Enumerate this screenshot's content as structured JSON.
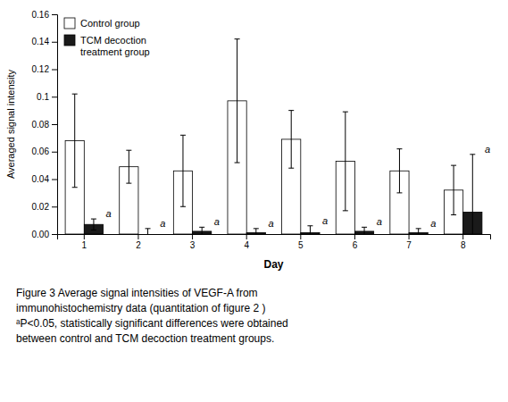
{
  "chart_data": {
    "type": "bar",
    "categories": [
      "1",
      "2",
      "3",
      "4",
      "5",
      "6",
      "7",
      "8"
    ],
    "series": [
      {
        "name": "Control group",
        "color": "#ffffff",
        "values": [
          0.068,
          0.049,
          0.046,
          0.097,
          0.069,
          0.053,
          0.046,
          0.032
        ],
        "errors": [
          0.034,
          0.012,
          0.026,
          0.045,
          0.021,
          0.036,
          0.016,
          0.018
        ]
      },
      {
        "name": "TCM decoction\ntreatment group",
        "color": "#1a1a1a",
        "values": [
          0.007,
          0.0,
          0.002,
          0.001,
          0.001,
          0.002,
          0.001,
          0.016
        ],
        "errors": [
          0.004,
          0.004,
          0.003,
          0.003,
          0.005,
          0.003,
          0.003,
          0.042
        ],
        "annotations": [
          "a",
          "a",
          "a",
          "a",
          "a",
          "a",
          "a",
          "a"
        ]
      }
    ],
    "ylim": [
      0,
      0.16
    ],
    "yticks": [
      {
        "value": 0,
        "label": "0.00"
      },
      0.02,
      0.04,
      0.06,
      0.08,
      0.1,
      0.12,
      0.14,
      0.16
    ],
    "ylabel": "Averaged signal intensity",
    "xlabel": "Day",
    "legend": "upper left",
    "grid": false,
    "caption": [
      "Figure 3 Average signal intensities of VEGF-A from",
      "immunohistochemistry data (quantitation of figure 2 )",
      "ᵃP<0.05, statistically significant differences were obtained",
      "between control and TCM decoction treatment groups."
    ]
  }
}
